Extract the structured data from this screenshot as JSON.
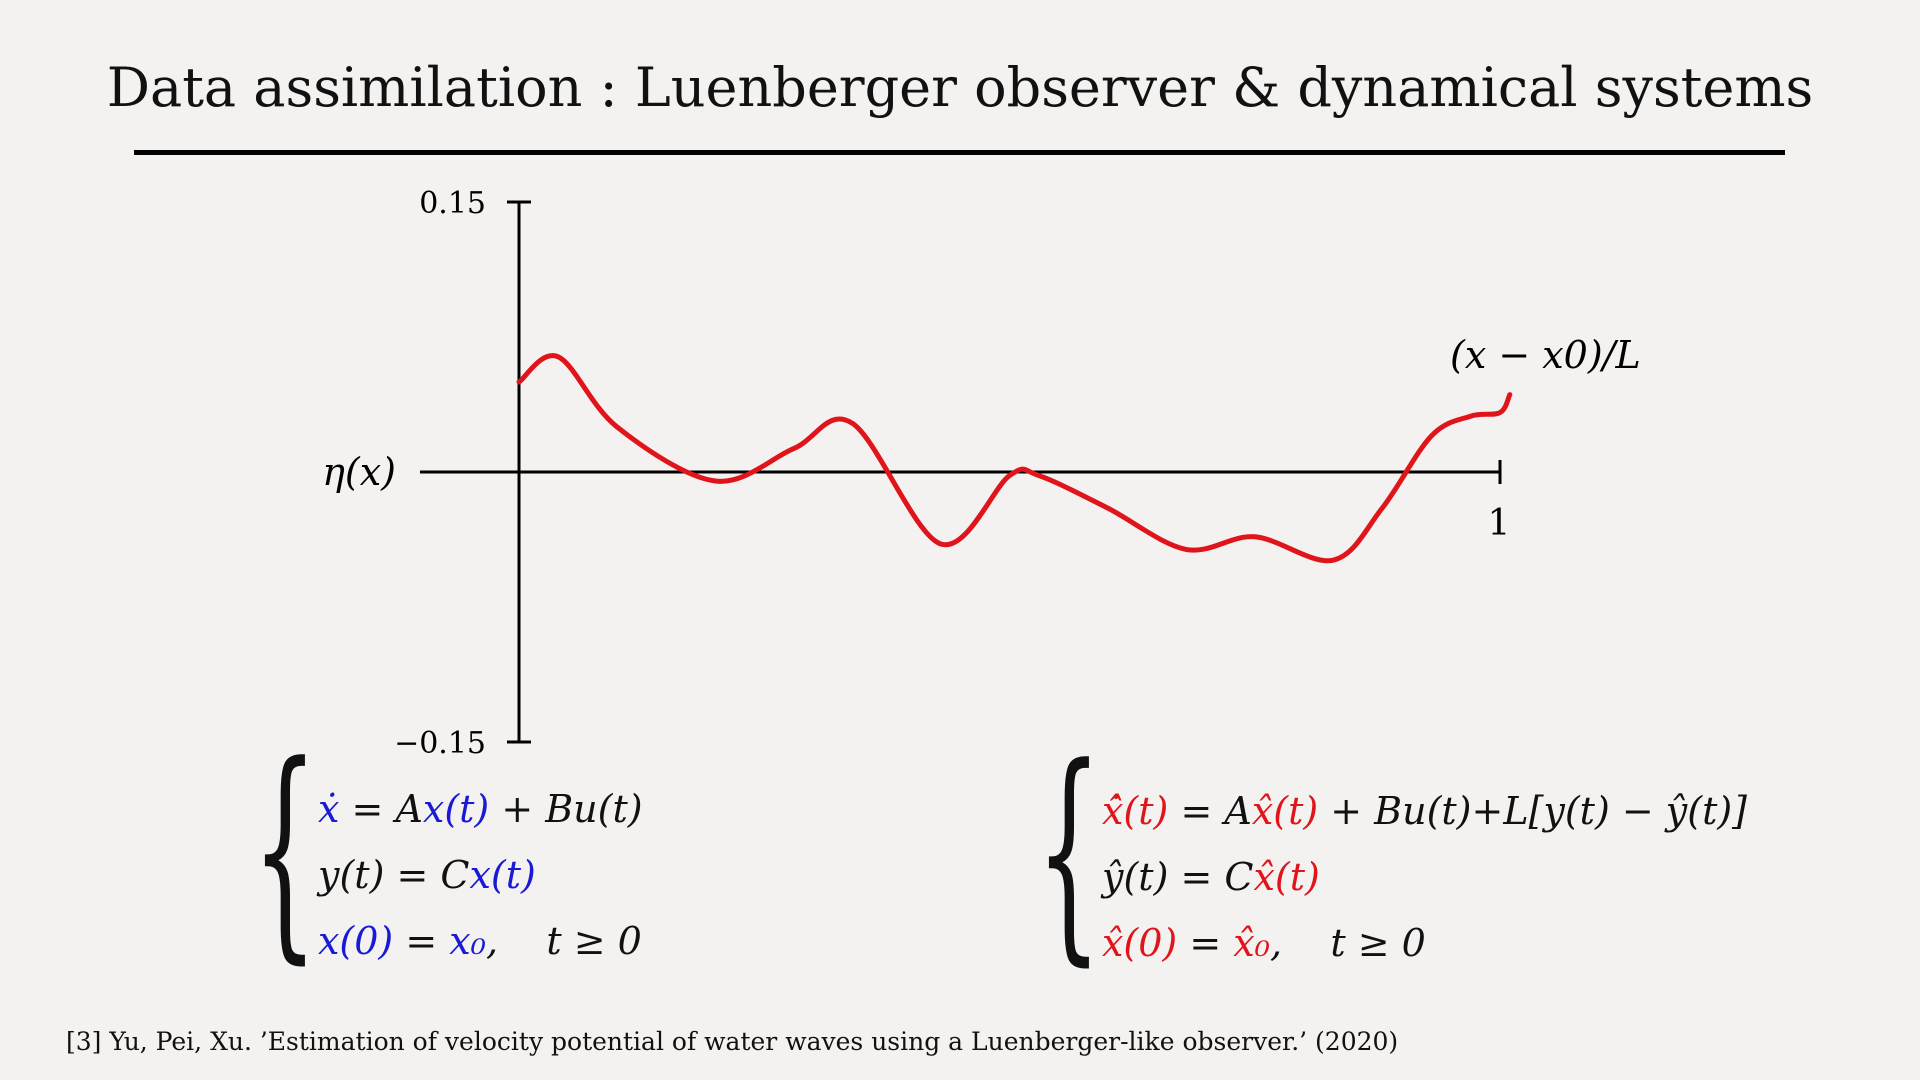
{
  "title": "Data assimilation : Luenberger observer & dynamical systems",
  "chart_data": {
    "type": "line",
    "y_axis_label": "η(x)",
    "x_axis_label": "(x − x0)/L",
    "ylim": [
      -0.15,
      0.15
    ],
    "xlim": [
      0,
      1
    ],
    "y_tick_labels": [
      "0.15",
      "−0.15"
    ],
    "x_tick_labels": [
      "1"
    ],
    "grid": false,
    "line_color": "#e0151b",
    "series": [
      {
        "x": [
          0.0,
          0.04,
          0.1,
          0.2,
          0.28,
          0.34,
          0.43,
          0.5,
          0.53,
          0.6,
          0.68,
          0.75,
          0.83,
          0.88,
          0.93,
          0.97,
          1.0,
          1.01
        ],
        "y": [
          0.05,
          0.064,
          0.025,
          -0.005,
          0.013,
          0.027,
          -0.04,
          -0.002,
          -0.002,
          -0.02,
          -0.043,
          -0.036,
          -0.049,
          -0.02,
          0.02,
          0.031,
          0.033,
          0.043
        ]
      }
    ]
  },
  "system_left": {
    "line1": {
      "lhs": "ẋ",
      "eq": " = ",
      "a": "A",
      "xt": "x(t)",
      "rest": " + Bu(t)"
    },
    "line2": {
      "lhs": "y(t) = C",
      "xt": "x(t)"
    },
    "line3": {
      "x0": "x(0)",
      "eq": " = ",
      "x0val": "x₀",
      "comma": ",    ",
      "cond": "t ≥ 0"
    }
  },
  "system_right": {
    "line1": {
      "lhs": "x̂̇(t)",
      "eq": " = A",
      "xt": "x̂(t)",
      "rest": " + Bu(t)+L[y(t) − ŷ(t)]"
    },
    "line2": {
      "lhs": "ŷ(t) = C",
      "xt": "x̂(t)"
    },
    "line3": {
      "x0": "x̂(0)",
      "eq": " = ",
      "x0val": "x̂₀",
      "comma": ",    ",
      "cond": "t ≥ 0"
    }
  },
  "footnote": "[3] Yu, Pei, Xu. ’Estimation of velocity potential of water waves using a Luenberger-like observer.’ (2020)"
}
